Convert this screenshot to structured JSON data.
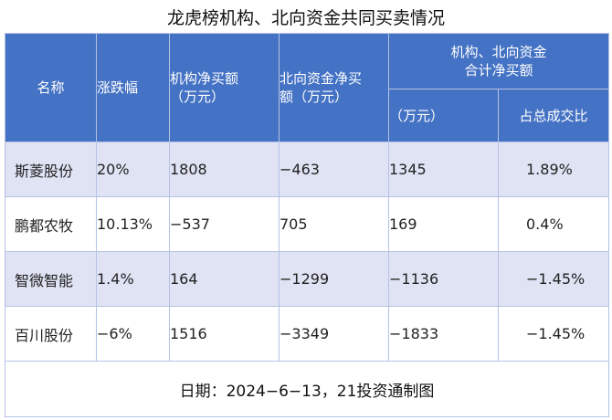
{
  "title": "龙虎榜机构、北向资金共同买卖情况",
  "header": {
    "name": "名称",
    "change": "涨跌幅",
    "inst_net_line1": "机构净买额",
    "inst_net_line2": "（万元）",
    "north_net_line1": "北向资金净买",
    "north_net_line2": "额（万元）",
    "combined_line1": "机构、北向资金",
    "combined_line2": "合计净买额",
    "combined_amount": "（万元）",
    "combined_ratio": "占总成交比"
  },
  "rows": [
    {
      "name": "斯菱股份",
      "change": "20%",
      "inst": "1808",
      "north": "−463",
      "total": "1345",
      "ratio": "1.89%"
    },
    {
      "name": "鹏都农牧",
      "change": "10.13%",
      "inst": "−537",
      "north": "705",
      "total": "169",
      "ratio": "0.4%"
    },
    {
      "name": "智微智能",
      "change": "1.4%",
      "inst": "164",
      "north": "−1299",
      "total": "−1136",
      "ratio": "−1.45%"
    },
    {
      "name": "百川股份",
      "change": "−6%",
      "inst": "1516",
      "north": "−3349",
      "total": "−1833",
      "ratio": "−1.45%"
    }
  ],
  "footer": "日期：2024−6−13，21投资通制图"
}
